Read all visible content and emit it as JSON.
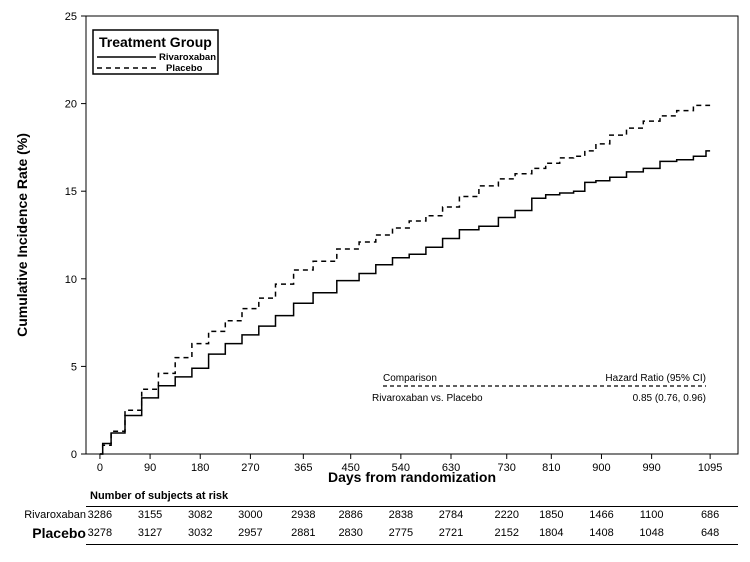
{
  "chart_data": {
    "type": "line",
    "xlabel": "Days from randomization",
    "ylabel": "Cumulative Incidence Rate (%)",
    "xlim": [
      -25,
      1145
    ],
    "ylim": [
      0,
      25
    ],
    "x_ticks": [
      0,
      90,
      180,
      270,
      365,
      450,
      540,
      630,
      730,
      810,
      900,
      990,
      1095
    ],
    "y_ticks": [
      0,
      5,
      10,
      15,
      20,
      25
    ],
    "grid": false,
    "legend": {
      "title": "Treatment Group",
      "placement": "top-left",
      "entries": [
        {
          "name": "Rivaroxaban",
          "style": "solid"
        },
        {
          "name": "Placebo",
          "style": "dashed"
        }
      ]
    },
    "series": [
      {
        "name": "Rivaroxaban",
        "style": "solid",
        "color": "#000000",
        "points": [
          [
            0,
            0
          ],
          [
            10,
            0.6
          ],
          [
            30,
            1.2
          ],
          [
            60,
            2.2
          ],
          [
            90,
            3.2
          ],
          [
            120,
            3.9
          ],
          [
            150,
            4.4
          ],
          [
            180,
            4.9
          ],
          [
            210,
            5.7
          ],
          [
            240,
            6.3
          ],
          [
            270,
            6.8
          ],
          [
            300,
            7.3
          ],
          [
            330,
            7.9
          ],
          [
            365,
            8.6
          ],
          [
            400,
            9.2
          ],
          [
            450,
            9.9
          ],
          [
            480,
            10.3
          ],
          [
            510,
            10.8
          ],
          [
            540,
            11.2
          ],
          [
            570,
            11.4
          ],
          [
            600,
            11.8
          ],
          [
            630,
            12.3
          ],
          [
            660,
            12.8
          ],
          [
            700,
            13.0
          ],
          [
            730,
            13.5
          ],
          [
            760,
            13.9
          ],
          [
            790,
            14.6
          ],
          [
            810,
            14.8
          ],
          [
            840,
            14.9
          ],
          [
            860,
            15.0
          ],
          [
            880,
            15.5
          ],
          [
            900,
            15.6
          ],
          [
            930,
            15.8
          ],
          [
            960,
            16.1
          ],
          [
            990,
            16.3
          ],
          [
            1020,
            16.7
          ],
          [
            1050,
            16.8
          ],
          [
            1080,
            17.0
          ],
          [
            1095,
            17.3
          ]
        ]
      },
      {
        "name": "Placebo",
        "style": "dashed",
        "color": "#000000",
        "points": [
          [
            0,
            0
          ],
          [
            10,
            0.5
          ],
          [
            30,
            1.3
          ],
          [
            60,
            2.5
          ],
          [
            90,
            3.7
          ],
          [
            120,
            4.6
          ],
          [
            150,
            5.5
          ],
          [
            180,
            6.3
          ],
          [
            210,
            7.0
          ],
          [
            240,
            7.6
          ],
          [
            270,
            8.3
          ],
          [
            300,
            8.9
          ],
          [
            330,
            9.7
          ],
          [
            365,
            10.5
          ],
          [
            400,
            11.0
          ],
          [
            450,
            11.7
          ],
          [
            480,
            12.1
          ],
          [
            510,
            12.5
          ],
          [
            540,
            12.9
          ],
          [
            570,
            13.3
          ],
          [
            600,
            13.6
          ],
          [
            630,
            14.1
          ],
          [
            660,
            14.7
          ],
          [
            700,
            15.3
          ],
          [
            730,
            15.7
          ],
          [
            760,
            16.0
          ],
          [
            790,
            16.3
          ],
          [
            810,
            16.6
          ],
          [
            840,
            16.9
          ],
          [
            860,
            17.0
          ],
          [
            880,
            17.3
          ],
          [
            900,
            17.7
          ],
          [
            930,
            18.2
          ],
          [
            960,
            18.6
          ],
          [
            990,
            19.0
          ],
          [
            1020,
            19.3
          ],
          [
            1050,
            19.6
          ],
          [
            1080,
            19.9
          ],
          [
            1095,
            19.9
          ]
        ]
      }
    ],
    "annotation": {
      "comparison_header": "Comparison",
      "hr_header": "Hazard Ratio (95% CI)",
      "comparison": "Rivaroxaban vs. Placebo",
      "hazard_ratio": "0.85 (0.76, 0.96)"
    }
  },
  "risk_table": {
    "title": "Number of subjects at risk",
    "rows": [
      {
        "label": "Rivaroxaban",
        "values": [
          "3286",
          "3155",
          "3082",
          "3000",
          "2938",
          "2886",
          "2838",
          "2784",
          "2220",
          "1850",
          "1466",
          "1100",
          "686"
        ]
      },
      {
        "label": "Placebo",
        "values": [
          "3278",
          "3127",
          "3032",
          "2957",
          "2881",
          "2830",
          "2775",
          "2721",
          "2152",
          "1804",
          "1408",
          "1048",
          "648"
        ]
      }
    ]
  }
}
